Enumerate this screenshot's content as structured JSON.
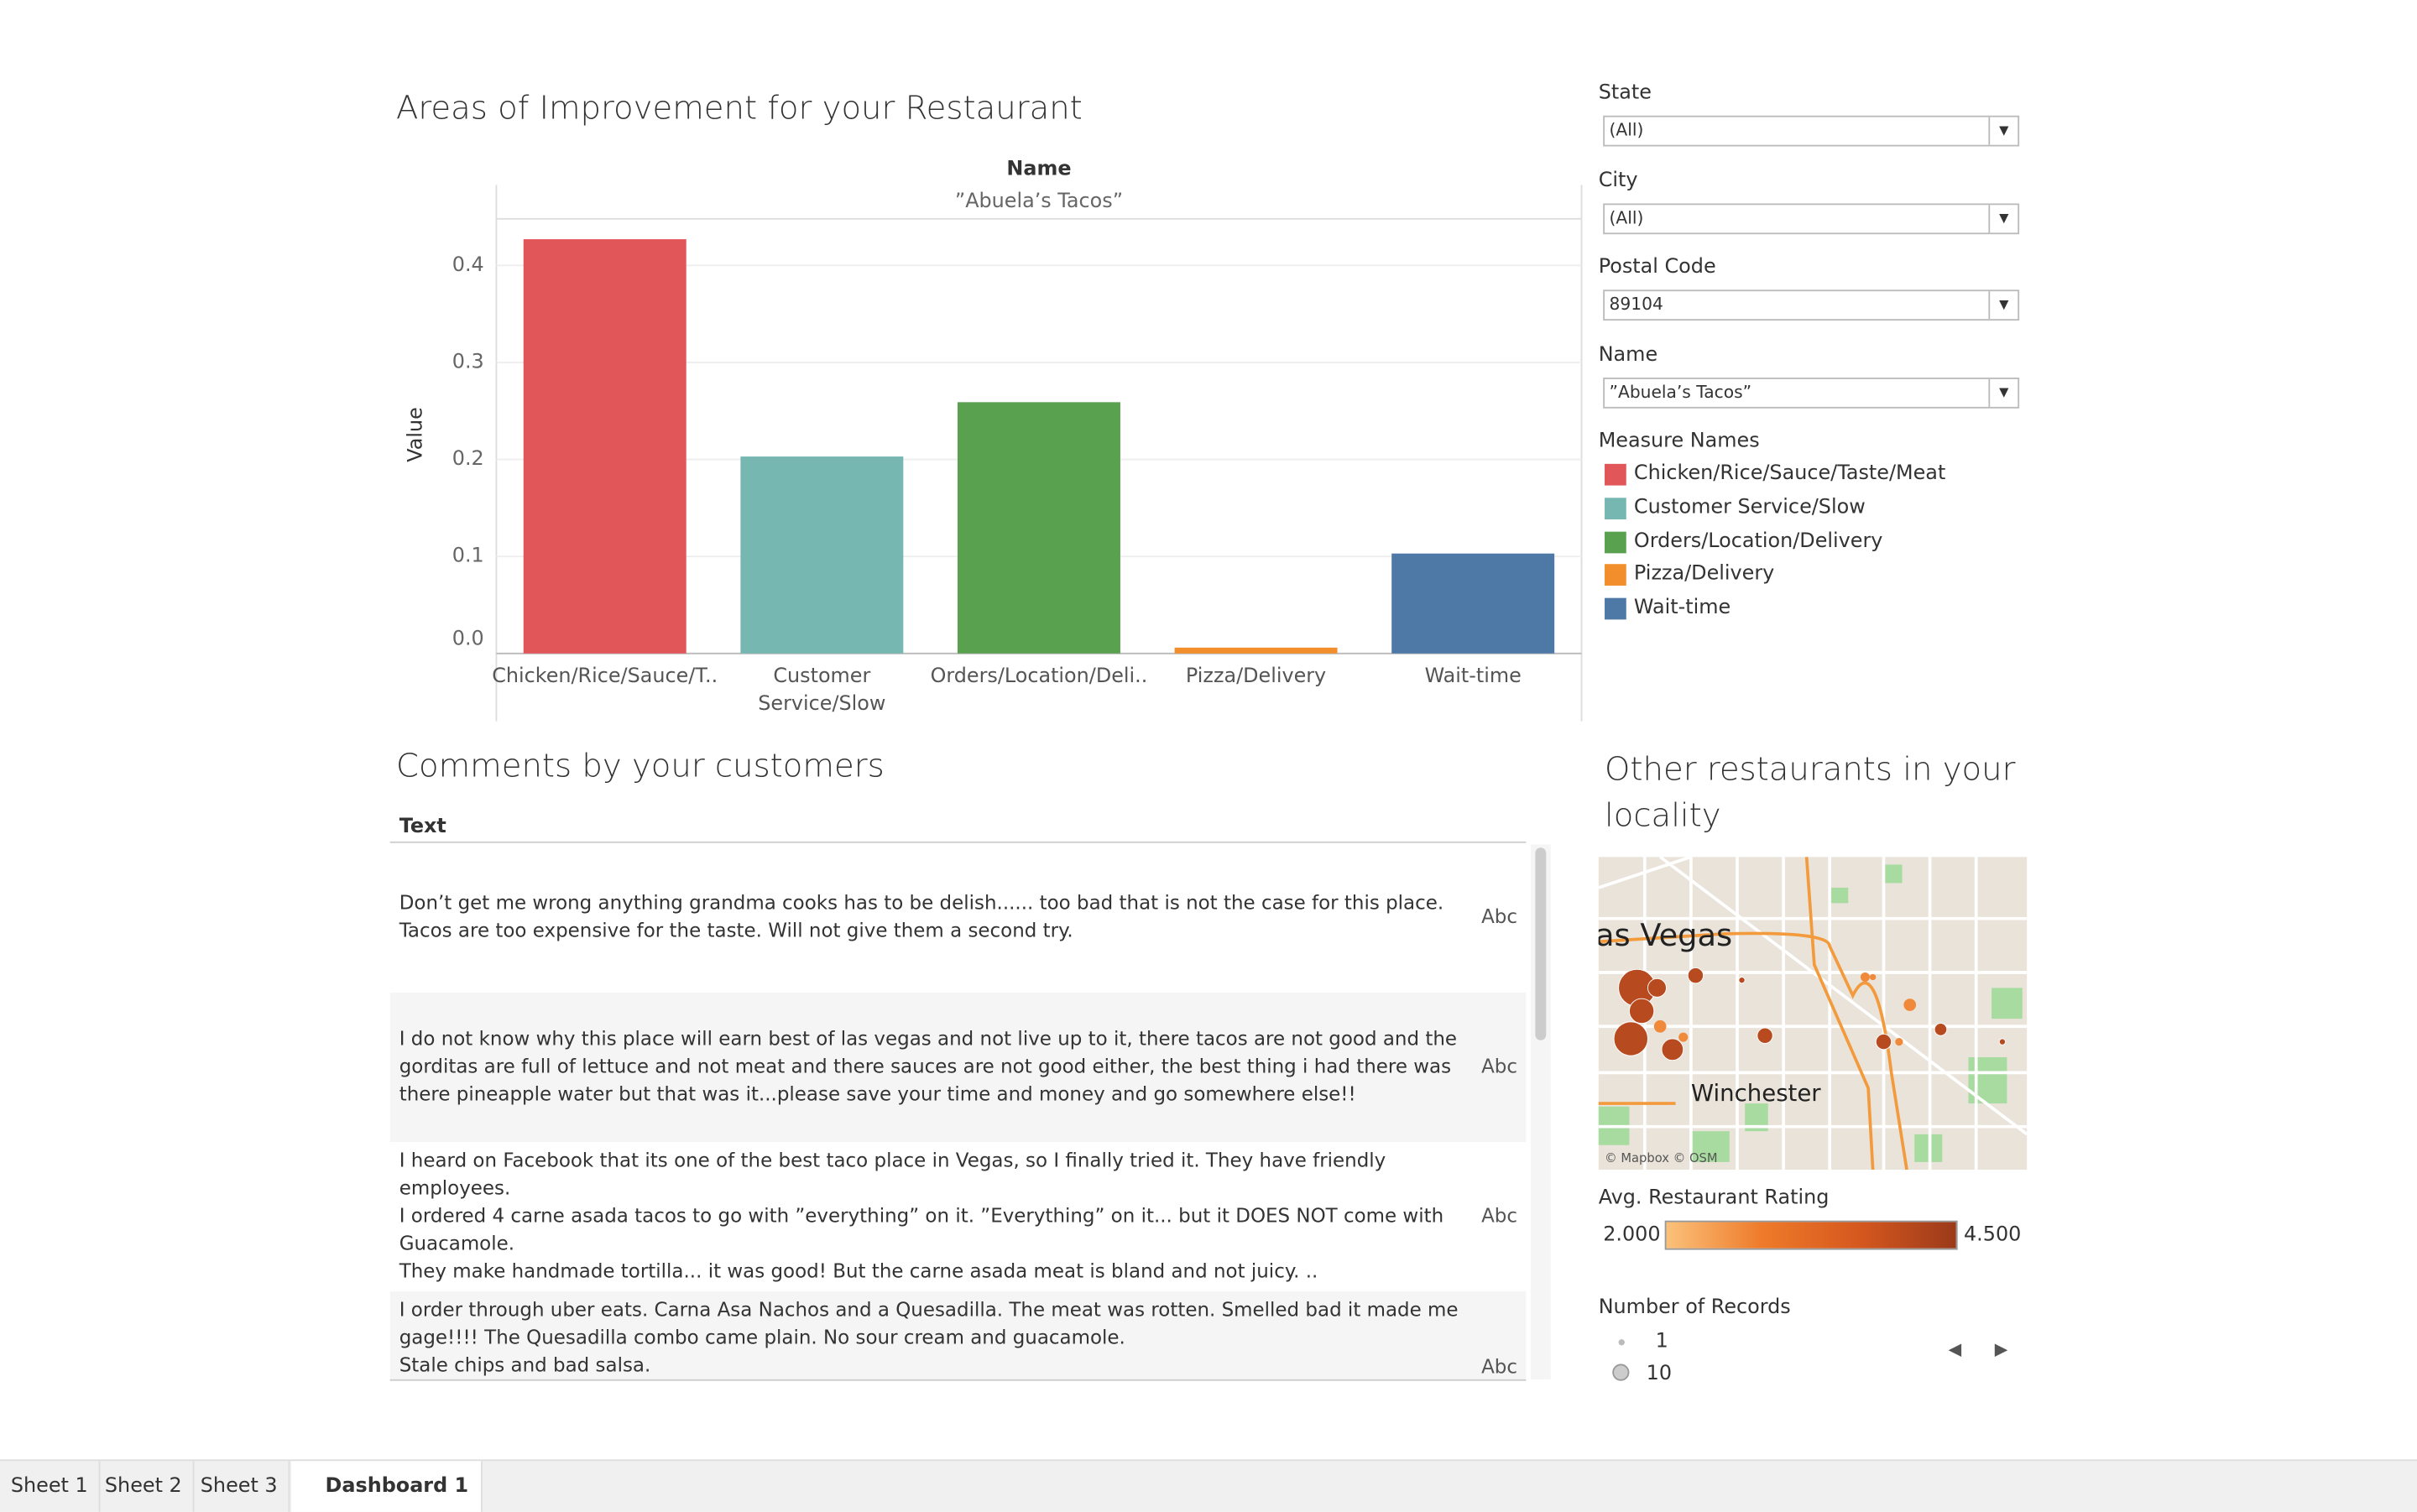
{
  "chart_data": {
    "type": "bar",
    "title": "Areas of Improvement for your Restaurant",
    "column_header": "Name",
    "facet": "”Abuela’s Tacos”",
    "y_label": "Value",
    "categories": [
      [
        "Chicken/Rice/Sauce/T.."
      ],
      [
        "Customer",
        "Service/Slow"
      ],
      [
        "Orders/Location/Deli.."
      ],
      [
        "Pizza/Delivery"
      ],
      [
        "Wait-time"
      ]
    ],
    "values": [
      0.427,
      0.203,
      0.259,
      0.006,
      0.103
    ],
    "colors": [
      "#e15759",
      "#76b7b2",
      "#59a14f",
      "#f28e2b",
      "#4e79a7"
    ],
    "ylim": [
      0,
      0.448
    ],
    "yticks": [
      {
        "value": 0,
        "label": "0.0"
      },
      0.1,
      0.2,
      0.3,
      0.4
    ],
    "grid": true
  },
  "filters": [
    {
      "label": "State",
      "value": "(All)"
    },
    {
      "label": "City",
      "value": "(All)"
    },
    {
      "label": "Postal Code",
      "value": "89104"
    },
    {
      "label": "Name",
      "value": "”Abuela’s Tacos”"
    }
  ],
  "legend": {
    "title": "Measure Names",
    "items": [
      "Chicken/Rice/Sauce/Taste/Meat",
      "Customer Service/Slow",
      "Orders/Location/Delivery",
      "Pizza/Delivery",
      "Wait-time"
    ]
  },
  "comments": {
    "title": "Comments by your customers",
    "header": "Text",
    "marker": "Abc",
    "rows": [
      [
        "Don’t get me wrong anything grandma cooks has to be delish...... too bad that is not the case for this place.",
        "Tacos are too expensive for the taste. Will not give them a second try."
      ],
      [
        "I do not know why this place will earn best of las vegas and not live up to it, there tacos are not good and the",
        "gorditas are full of lettuce and not meat and there sauces are not good either, the best thing i had there was",
        "there pineapple water but that was it...please save your time and money and go somewhere else!!"
      ],
      [
        "I heard on Facebook that its one of the best taco place in Vegas, so I finally tried it. They have friendly",
        "employees.",
        "I ordered 4 carne asada tacos to go with ”everything” on it.  ”Everything” on it... but it DOES NOT come with",
        "Guacamole.",
        "They make handmade tortilla... it was good! But the carne asada meat is bland and not juicy. .."
      ],
      [
        "I order through uber eats. Carna Asa Nachos and a Quesadilla. The meat was rotten. Smelled bad it made me",
        "gage!!!! The Quesadilla combo came plain. No sour cream and guacamole.",
        "Stale chips and bad salsa."
      ]
    ]
  },
  "map": {
    "title": "Other restaurants in your locality",
    "places": [
      "as Vegas",
      "Winchester"
    ],
    "attribution": "© Mapbox © OSM",
    "color_legend": {
      "title": "Avg. Restaurant Rating",
      "min": "2.000",
      "max": "4.500"
    },
    "size_legend": {
      "title": "Number of Records",
      "items": [
        "1",
        "10"
      ]
    }
  },
  "tabs": [
    "Sheet 1",
    "Sheet 2",
    "Sheet 3",
    "Dashboard 1"
  ]
}
